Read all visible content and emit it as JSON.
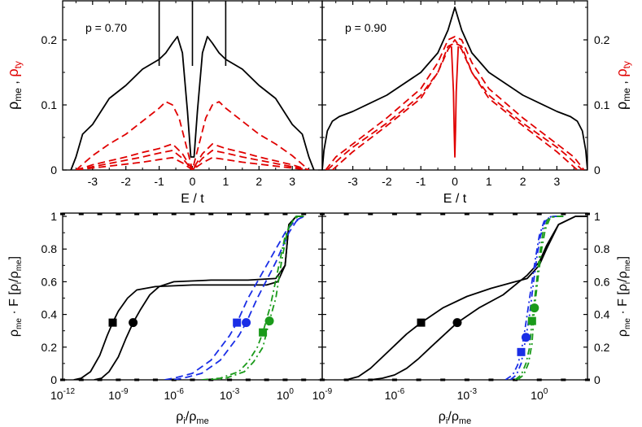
{
  "colors": {
    "black": "#000000",
    "red": "#e00000",
    "blue": "#1a2ee6",
    "green": "#1a9a1a"
  },
  "chart_data": [
    {
      "type": "line",
      "panel": "top-left",
      "annotation": "p = 0.70",
      "xlabel": "E / t",
      "ylabel_left": {
        "main": "ρ",
        "sub1": "me",
        "sep": " , ",
        "main2": "ρ",
        "sub2": "ty"
      },
      "xlim": [
        -3.9,
        3.9
      ],
      "ylim": [
        0,
        0.26
      ],
      "xticks": [
        "-3",
        "-2",
        "-1",
        "0",
        "1",
        "2",
        "3"
      ],
      "yticks": [
        "0",
        "0.1",
        "0.2"
      ],
      "series": [
        {
          "color": "black",
          "style": "solid",
          "x": [
            -3.65,
            -3.5,
            -3.3,
            -3.1,
            -3.0,
            -2.5,
            -2.0,
            -1.5,
            -1.0,
            -0.8,
            -0.6,
            -0.45,
            -0.3,
            -0.15,
            -0.05,
            0.05,
            0.15,
            0.3,
            0.45,
            0.6,
            0.8,
            1.0,
            1.5,
            2.0,
            2.5,
            3.0,
            3.1,
            3.3,
            3.5,
            3.65
          ],
          "y": [
            0,
            0.02,
            0.055,
            0.065,
            0.07,
            0.11,
            0.13,
            0.155,
            0.17,
            0.18,
            0.195,
            0.205,
            0.18,
            0.09,
            0.02,
            0.02,
            0.09,
            0.18,
            0.205,
            0.195,
            0.18,
            0.17,
            0.155,
            0.13,
            0.11,
            0.07,
            0.065,
            0.055,
            0.02,
            0
          ]
        },
        {
          "color": "red",
          "style": "dashed",
          "x": [
            -3.5,
            -3.0,
            -2.5,
            -2.0,
            -1.5,
            -1.0,
            -0.8,
            -0.6,
            -0.4,
            -0.2,
            0,
            0.2,
            0.4,
            0.6,
            0.8,
            1.0,
            1.5,
            2.0,
            2.5,
            3.0,
            3.5
          ],
          "y": [
            0,
            0.022,
            0.04,
            0.055,
            0.075,
            0.095,
            0.105,
            0.1,
            0.08,
            0.04,
            0,
            0.04,
            0.08,
            0.1,
            0.105,
            0.095,
            0.075,
            0.055,
            0.04,
            0.022,
            0
          ]
        },
        {
          "color": "red",
          "style": "dashed",
          "x": [
            -3.5,
            -3.0,
            -2.5,
            -2.0,
            -1.5,
            -1.0,
            -0.6,
            -0.3,
            0,
            0.3,
            0.6,
            1.0,
            1.5,
            2.0,
            2.5,
            3.0,
            3.5
          ],
          "y": [
            0,
            0.008,
            0.014,
            0.02,
            0.027,
            0.033,
            0.04,
            0.025,
            0,
            0.025,
            0.04,
            0.033,
            0.027,
            0.02,
            0.014,
            0.008,
            0
          ]
        },
        {
          "color": "red",
          "style": "dashed",
          "x": [
            -3.5,
            -3.0,
            -2.5,
            -2.0,
            -1.5,
            -1.0,
            -0.6,
            -0.3,
            0,
            0.3,
            0.6,
            1.0,
            1.5,
            2.0,
            2.5,
            3.0,
            3.5
          ],
          "y": [
            0,
            0.005,
            0.01,
            0.015,
            0.02,
            0.026,
            0.03,
            0.018,
            0,
            0.018,
            0.03,
            0.026,
            0.02,
            0.015,
            0.01,
            0.005,
            0
          ]
        },
        {
          "color": "red",
          "style": "dashed",
          "x": [
            -3.5,
            -3.0,
            -2.5,
            -2.0,
            -1.5,
            -1.0,
            -0.6,
            -0.3,
            0,
            0.3,
            0.6,
            1.0,
            1.5,
            2.0,
            2.5,
            3.0,
            3.5
          ],
          "y": [
            0,
            0.003,
            0.006,
            0.009,
            0.012,
            0.016,
            0.019,
            0.011,
            0,
            0.011,
            0.019,
            0.016,
            0.012,
            0.009,
            0.006,
            0.003,
            0
          ]
        }
      ],
      "vlines_black": [
        -1.0,
        0.0,
        1.0
      ]
    },
    {
      "type": "line",
      "panel": "top-right",
      "annotation": "p = 0.90",
      "xlabel": "E / t",
      "ylabel_right": {
        "main": "ρ",
        "sub1": "me",
        "sep": " , ",
        "main2": "ρ",
        "sub2": "ty"
      },
      "xlim": [
        -3.9,
        3.9
      ],
      "ylim": [
        0,
        0.26
      ],
      "xticks": [
        "-3",
        "-2",
        "-1",
        "0",
        "1",
        "2",
        "3"
      ],
      "yticks": [
        "0",
        "0.1",
        "0.2"
      ],
      "series": [
        {
          "color": "black",
          "style": "solid",
          "x": [
            -3.9,
            -3.85,
            -3.75,
            -3.6,
            -3.4,
            -3.0,
            -2.0,
            -1.0,
            -0.5,
            -0.2,
            0,
            0.2,
            0.5,
            1.0,
            2.0,
            3.0,
            3.4,
            3.6,
            3.75,
            3.85,
            3.9
          ],
          "y": [
            0,
            0.03,
            0.06,
            0.075,
            0.082,
            0.09,
            0.115,
            0.15,
            0.18,
            0.215,
            0.25,
            0.215,
            0.18,
            0.15,
            0.115,
            0.09,
            0.082,
            0.075,
            0.06,
            0.03,
            0
          ]
        },
        {
          "color": "red",
          "style": "dashed",
          "x": [
            -3.8,
            -3.5,
            -3.0,
            -2.0,
            -1.0,
            -0.5,
            -0.2,
            0,
            0.2,
            0.5,
            1.0,
            2.0,
            3.0,
            3.5,
            3.8
          ],
          "y": [
            0,
            0.02,
            0.04,
            0.08,
            0.125,
            0.165,
            0.2,
            0.205,
            0.2,
            0.165,
            0.125,
            0.08,
            0.04,
            0.02,
            0
          ]
        },
        {
          "color": "red",
          "style": "dashed",
          "x": [
            -3.75,
            -3.3,
            -3.0,
            -2.0,
            -1.0,
            -0.5,
            -0.2,
            0,
            0.2,
            0.5,
            1.0,
            2.0,
            3.0,
            3.3,
            3.75
          ],
          "y": [
            0,
            0.022,
            0.035,
            0.072,
            0.115,
            0.15,
            0.185,
            0.2,
            0.185,
            0.15,
            0.115,
            0.072,
            0.035,
            0.022,
            0
          ]
        },
        {
          "color": "red",
          "style": "dashed",
          "x": [
            -3.6,
            -3.0,
            -2.0,
            -1.0,
            -0.5,
            -0.2,
            0,
            0.2,
            0.5,
            1.0,
            2.0,
            3.0,
            3.6
          ],
          "y": [
            0,
            0.028,
            0.068,
            0.11,
            0.15,
            0.19,
            0.195,
            0.19,
            0.15,
            0.11,
            0.068,
            0.028,
            0
          ]
        },
        {
          "color": "red",
          "style": "solid",
          "x": [
            -0.1,
            -0.04,
            -0.02,
            0,
            0.02,
            0.04,
            0.1
          ],
          "y": [
            0.19,
            0.12,
            0.06,
            0.02,
            0.06,
            0.12,
            0.19
          ]
        }
      ]
    },
    {
      "type": "line",
      "panel": "bottom-left",
      "xlabel": {
        "main": "ρ",
        "sub1": "i",
        "sep": "/",
        "main2": "ρ",
        "sub2": "me"
      },
      "ylabel_left": {
        "main": "ρ",
        "sub1": "me",
        "mid": " · F [ρ",
        "sub2": "i",
        "sep": "/ρ",
        "sub3": "me",
        "end": "]"
      },
      "x_scale": "log",
      "xlim_exp": [
        -12,
        2
      ],
      "ylim": [
        0,
        1.02
      ],
      "xticks": [
        {
          "base": "10",
          "exp": "-12"
        },
        {
          "base": "10",
          "exp": "-9"
        },
        {
          "base": "10",
          "exp": "-6"
        },
        {
          "base": "10",
          "exp": "-3"
        },
        {
          "base": "10",
          "exp": "0"
        }
      ],
      "yticks": [
        "0",
        "0.2",
        "0.4",
        "0.6",
        "0.8",
        "1"
      ],
      "series": [
        {
          "color": "black",
          "style": "solid",
          "marker": "square",
          "marker_at": [
            -9.3,
            0.35
          ],
          "logx": [
            -11.4,
            -11.0,
            -10.5,
            -10.0,
            -9.6,
            -9.3,
            -9.0,
            -8.5,
            -8.0,
            -7.0,
            -5.0,
            -3.0,
            -1.0,
            -0.4,
            0.0,
            0.2,
            0.6,
            1.0
          ],
          "y": [
            0,
            0.01,
            0.05,
            0.15,
            0.27,
            0.35,
            0.42,
            0.5,
            0.55,
            0.57,
            0.58,
            0.58,
            0.58,
            0.6,
            0.7,
            0.95,
            1.0,
            1.0
          ]
        },
        {
          "color": "black",
          "style": "solid",
          "marker": "circle",
          "marker_at": [
            -8.2,
            0.35
          ],
          "logx": [
            -10.3,
            -9.9,
            -9.5,
            -9.0,
            -8.6,
            -8.2,
            -7.8,
            -7.3,
            -6.8,
            -6.0,
            -4.0,
            -2.0,
            -0.5,
            0.0,
            0.2,
            0.6,
            1.0
          ],
          "y": [
            0,
            0.01,
            0.05,
            0.14,
            0.25,
            0.35,
            0.43,
            0.52,
            0.57,
            0.6,
            0.61,
            0.61,
            0.62,
            0.7,
            0.95,
            1.0,
            1.0
          ]
        },
        {
          "color": "blue",
          "style": "dashed",
          "marker": "square",
          "marker_at": [
            -2.6,
            0.35
          ],
          "logx": [
            -6.5,
            -6.0,
            -5.0,
            -4.0,
            -3.0,
            -2.6,
            -2.0,
            -1.0,
            0.0,
            0.5,
            1.0
          ],
          "y": [
            0,
            0.01,
            0.04,
            0.12,
            0.27,
            0.35,
            0.5,
            0.7,
            0.9,
            0.97,
            1.0
          ]
        },
        {
          "color": "blue",
          "style": "dashed",
          "marker": "circle",
          "marker_at": [
            -2.1,
            0.35
          ],
          "logx": [
            -6.0,
            -5.5,
            -4.5,
            -3.5,
            -2.5,
            -2.1,
            -1.5,
            -0.5,
            0.2,
            0.6,
            1.0
          ],
          "y": [
            0,
            0.01,
            0.04,
            0.12,
            0.27,
            0.35,
            0.5,
            0.72,
            0.9,
            0.97,
            1.0
          ]
        },
        {
          "color": "green",
          "style": "dashdot",
          "marker": "square",
          "marker_at": [
            -1.2,
            0.29
          ],
          "logx": [
            -4.5,
            -3.5,
            -2.5,
            -2.0,
            -1.5,
            -1.2,
            -0.8,
            -0.3,
            0.0,
            0.3,
            0.6,
            1.0
          ],
          "y": [
            0,
            0.01,
            0.05,
            0.11,
            0.2,
            0.29,
            0.45,
            0.72,
            0.88,
            0.96,
            1.0,
            1.0
          ]
        },
        {
          "color": "green",
          "style": "dashdot",
          "marker": "circle",
          "marker_at": [
            -0.85,
            0.36
          ],
          "logx": [
            -4.0,
            -3.2,
            -2.2,
            -1.7,
            -1.2,
            -0.85,
            -0.5,
            -0.2,
            0.1,
            0.4,
            0.7,
            1.0
          ],
          "y": [
            0,
            0.01,
            0.05,
            0.11,
            0.2,
            0.36,
            0.5,
            0.72,
            0.9,
            0.97,
            1.0,
            1.0
          ]
        }
      ]
    },
    {
      "type": "line",
      "panel": "bottom-right",
      "xlabel": {
        "main": "ρ",
        "sub1": "i",
        "sep": "/",
        "main2": "ρ",
        "sub2": "me"
      },
      "ylabel_right": {
        "main": "ρ",
        "sub1": "me",
        "mid": " · F [ρ",
        "sub2": "i",
        "sep": "/ρ",
        "sub3": "me",
        "end": "]"
      },
      "x_scale": "log",
      "xlim_exp": [
        -9,
        2
      ],
      "ylim": [
        0,
        1.02
      ],
      "xticks": [
        {
          "base": "10",
          "exp": "-9"
        },
        {
          "base": "10",
          "exp": "-6"
        },
        {
          "base": "10",
          "exp": "-3"
        },
        {
          "base": "10",
          "exp": "0"
        }
      ],
      "yticks": [
        "0",
        "0.2",
        "0.4",
        "0.6",
        "0.8",
        "1"
      ],
      "series": [
        {
          "color": "black",
          "style": "solid",
          "marker": "square",
          "marker_at": [
            -4.9,
            0.35
          ],
          "logx": [
            -8.0,
            -7.5,
            -7.0,
            -6.5,
            -6.0,
            -5.5,
            -4.9,
            -4.0,
            -3.0,
            -2.0,
            -1.0,
            -0.5,
            0.0,
            0.3,
            0.8,
            1.5,
            2.0
          ],
          "y": [
            0,
            0.02,
            0.07,
            0.14,
            0.21,
            0.28,
            0.35,
            0.44,
            0.51,
            0.56,
            0.6,
            0.62,
            0.7,
            0.8,
            0.95,
            1.0,
            1.0
          ]
        },
        {
          "color": "black",
          "style": "solid",
          "marker": "circle",
          "marker_at": [
            -3.4,
            0.35
          ],
          "logx": [
            -7.0,
            -6.5,
            -6.0,
            -5.5,
            -5.0,
            -4.5,
            -3.4,
            -2.5,
            -1.5,
            -1.0,
            -0.5,
            0.0,
            0.3,
            0.8,
            1.5,
            2.0
          ],
          "y": [
            0,
            0.01,
            0.03,
            0.07,
            0.13,
            0.2,
            0.35,
            0.44,
            0.52,
            0.58,
            0.64,
            0.72,
            0.82,
            0.95,
            1.0,
            1.0
          ]
        },
        {
          "color": "blue",
          "style": "dashdot",
          "marker": "square",
          "marker_at": [
            -0.75,
            0.17
          ],
          "logx": [
            -1.4,
            -1.1,
            -0.9,
            -0.75,
            -0.6,
            -0.45,
            -0.3,
            -0.15,
            0.0,
            0.2,
            0.5,
            1.0
          ],
          "y": [
            0,
            0.03,
            0.09,
            0.17,
            0.3,
            0.45,
            0.6,
            0.75,
            0.88,
            0.97,
            1.0,
            1.0
          ]
        },
        {
          "color": "blue",
          "style": "dashdot",
          "marker": "circle",
          "marker_at": [
            -0.55,
            0.26
          ],
          "logx": [
            -1.2,
            -0.95,
            -0.75,
            -0.55,
            -0.4,
            -0.25,
            -0.1,
            0.05,
            0.25,
            0.5,
            1.0
          ],
          "y": [
            0,
            0.03,
            0.1,
            0.26,
            0.4,
            0.58,
            0.75,
            0.88,
            0.97,
            1.0,
            1.0
          ]
        },
        {
          "color": "green",
          "style": "dashdot",
          "marker": "square",
          "marker_at": [
            -0.3,
            0.36
          ],
          "logx": [
            -1.0,
            -0.75,
            -0.55,
            -0.4,
            -0.3,
            -0.15,
            0.0,
            0.15,
            0.35,
            0.6,
            1.0
          ],
          "y": [
            0,
            0.03,
            0.1,
            0.2,
            0.36,
            0.55,
            0.75,
            0.9,
            0.98,
            1.0,
            1.0
          ]
        },
        {
          "color": "green",
          "style": "dashdot",
          "marker": "circle",
          "marker_at": [
            -0.2,
            0.44
          ],
          "logx": [
            -0.9,
            -0.65,
            -0.45,
            -0.3,
            -0.2,
            -0.05,
            0.1,
            0.25,
            0.45,
            0.7,
            1.0
          ],
          "y": [
            0,
            0.03,
            0.1,
            0.22,
            0.44,
            0.62,
            0.8,
            0.92,
            0.99,
            1.0,
            1.0
          ]
        }
      ]
    }
  ]
}
